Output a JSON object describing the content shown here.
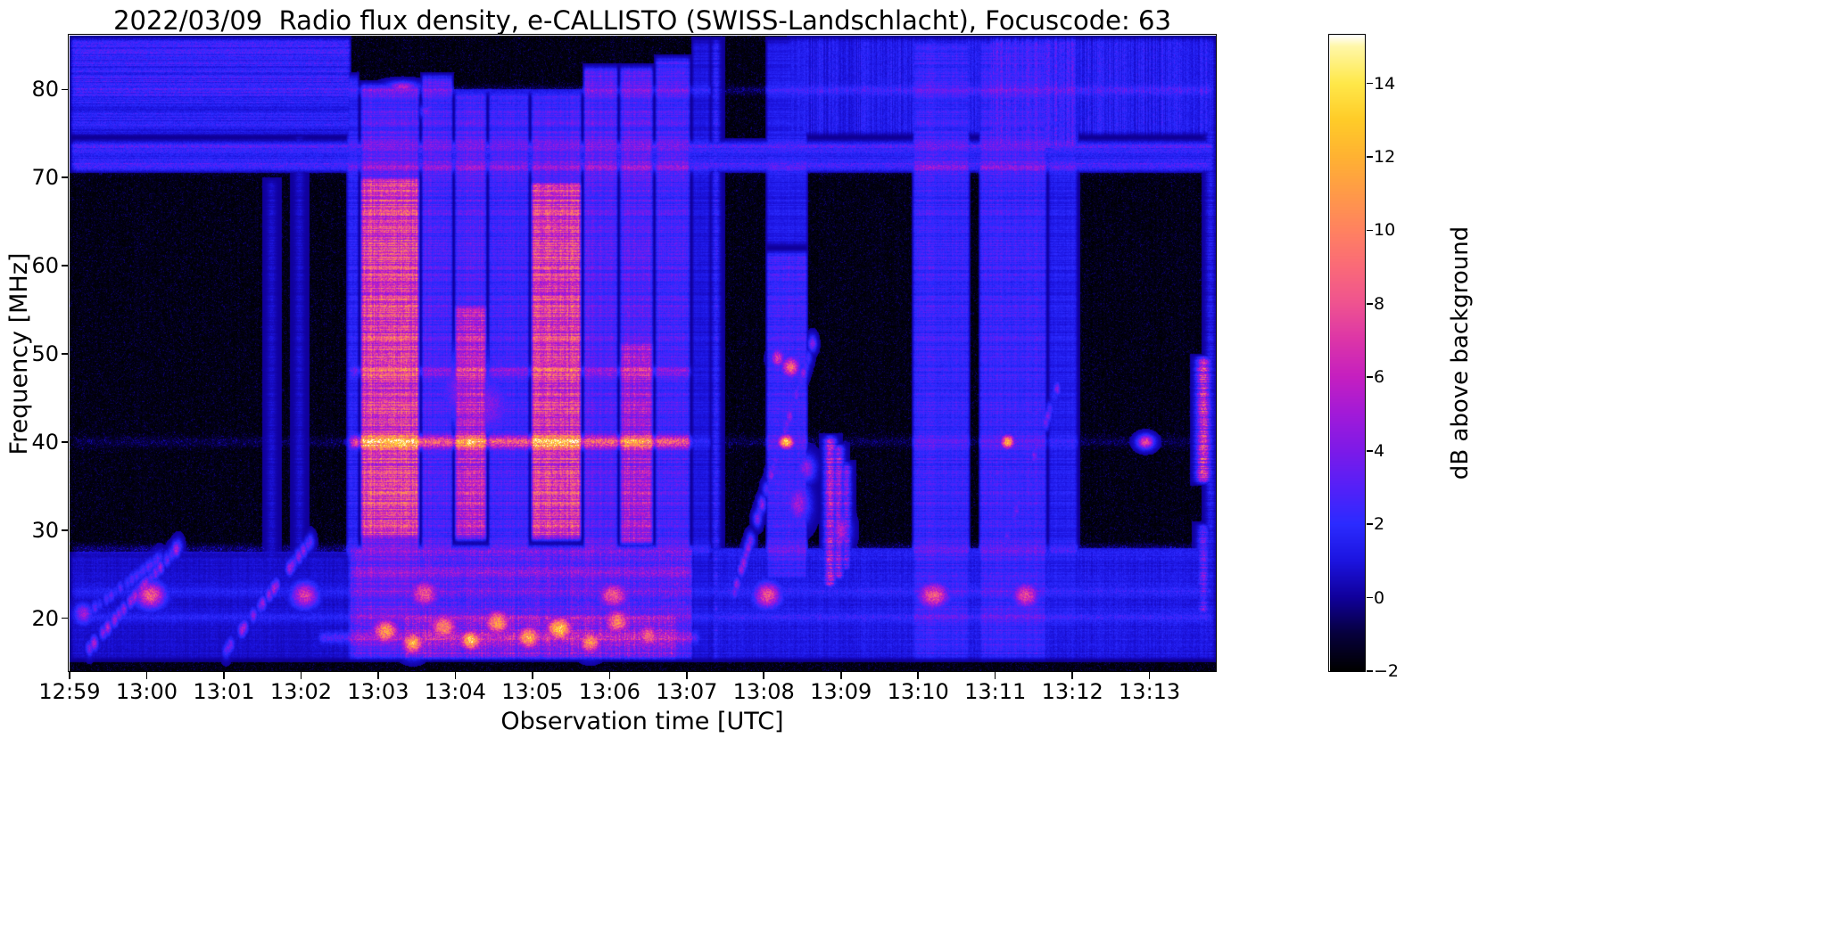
{
  "figure": {
    "background": "#ffffff",
    "text_color": "#000000"
  },
  "chart_data": {
    "type": "heatmap",
    "title": "2022/03/09  Radio flux density, e-CALLISTO (SWISS-Landschlacht), Focuscode: 63",
    "xlabel": "Observation time [UTC]",
    "ylabel": "Frequency [MHz]",
    "units": {
      "t": "minutes after 12:59 UTC",
      "f": "MHz",
      "amp": "dB above background"
    },
    "x_tick_labels": [
      "12:59",
      "13:00",
      "13:01",
      "13:02",
      "13:03",
      "13:04",
      "13:05",
      "13:06",
      "13:07",
      "13:08",
      "13:09",
      "13:10",
      "13:11",
      "13:12",
      "13:13"
    ],
    "x_range_minutes": [
      0,
      14.86
    ],
    "y_tick_values": [
      20,
      30,
      40,
      50,
      60,
      70,
      80
    ],
    "y_range_mhz": [
      14.0,
      86.1
    ],
    "grid": false,
    "colorbar": {
      "label": "dB above background",
      "tick_values": [
        -2,
        0,
        2,
        4,
        6,
        8,
        10,
        12,
        14
      ],
      "range": [
        -2,
        15.3
      ]
    },
    "colormap": {
      "stops": [
        [
          -2,
          "#000000"
        ],
        [
          -1,
          "#06003c"
        ],
        [
          0,
          "#10009b"
        ],
        [
          1,
          "#1c14e0"
        ],
        [
          2,
          "#2b2bff"
        ],
        [
          3,
          "#5520f8"
        ],
        [
          4,
          "#7d1ae8"
        ],
        [
          5,
          "#a21ad8"
        ],
        [
          6,
          "#c51fc0"
        ],
        [
          7,
          "#dc35a8"
        ],
        [
          8,
          "#ef5390"
        ],
        [
          9,
          "#fa6a78"
        ],
        [
          10,
          "#ff8260"
        ],
        [
          11,
          "#ff9a48"
        ],
        [
          12,
          "#ffb232"
        ],
        [
          13,
          "#ffcc28"
        ],
        [
          14,
          "#ffe84a"
        ],
        [
          15,
          "#fff7a8"
        ],
        [
          15.3,
          "#ffffff"
        ]
      ]
    },
    "regions": [
      {
        "t": [
          0,
          3.66
        ],
        "f": [
          74.5,
          86.2
        ],
        "amp": 2.3,
        "tex": "rows"
      },
      {
        "t": [
          0,
          3.66
        ],
        "f": [
          79.5,
          86.2
        ],
        "amp": 2.9,
        "tex": "rows"
      },
      {
        "t": [
          9.3,
          14.86
        ],
        "f": [
          74.5,
          86.2
        ],
        "amp": 2.0,
        "tex": "cols"
      },
      {
        "t": [
          11.9,
          13.1
        ],
        "f": [
          73.0,
          86.2
        ],
        "amp": 3.2,
        "tex": "cols"
      },
      {
        "t": [
          13.15,
          14.86
        ],
        "f": [
          74.5,
          86.2
        ],
        "amp": 2.3,
        "tex": "cols"
      },
      {
        "t": [
          0,
          14.86
        ],
        "f": [
          70.5,
          74.5
        ],
        "amp": 2.0,
        "tex": "rows"
      },
      {
        "t": [
          3.6,
          8.1
        ],
        "f": [
          15.0,
          28.5
        ],
        "amp": 4.2,
        "tex": "mix"
      },
      {
        "t": [
          0,
          14.86
        ],
        "f": [
          15.0,
          27.5
        ],
        "amp": 1.2,
        "tex": "mix"
      },
      {
        "t": [
          8.3,
          14.86
        ],
        "f": [
          15.0,
          28.0
        ],
        "amp": 1.8,
        "tex": "mix"
      },
      {
        "t": [
          4.3,
          7.9
        ],
        "f": [
          15.0,
          21.0
        ],
        "amp": 6.0,
        "tex": "mix"
      }
    ],
    "bands": [
      {
        "t": [
          3.58,
          3.76
        ],
        "f": [
          15,
          82
        ],
        "amp": 2.2
      },
      {
        "t": [
          3.76,
          4.55
        ],
        "f": [
          28.5,
          70.5
        ],
        "amp": 8.6
      },
      {
        "t": [
          3.76,
          4.55
        ],
        "f": [
          67,
          81
        ],
        "amp": 3.4
      },
      {
        "t": [
          3.76,
          4.55
        ],
        "f": [
          15,
          30
        ],
        "amp": 4.0
      },
      {
        "t": [
          4.55,
          4.98
        ],
        "f": [
          16,
          82
        ],
        "amp": 3.2
      },
      {
        "t": [
          4.98,
          5.42
        ],
        "f": [
          28.5,
          56
        ],
        "amp": 7.0
      },
      {
        "t": [
          4.98,
          5.42
        ],
        "f": [
          54,
          80
        ],
        "amp": 3.4
      },
      {
        "t": [
          5.42,
          5.97
        ],
        "f": [
          16,
          80
        ],
        "amp": 3.0
      },
      {
        "t": [
          5.97,
          6.65
        ],
        "f": [
          28.5,
          70
        ],
        "amp": 8.4
      },
      {
        "t": [
          5.97,
          6.65
        ],
        "f": [
          67,
          80
        ],
        "amp": 3.2
      },
      {
        "t": [
          6.65,
          7.12
        ],
        "f": [
          20,
          83
        ],
        "amp": 3.5
      },
      {
        "t": [
          7.12,
          7.58
        ],
        "f": [
          28,
          52
        ],
        "amp": 6.2
      },
      {
        "t": [
          7.12,
          7.58
        ],
        "f": [
          50,
          83
        ],
        "amp": 3.6
      },
      {
        "t": [
          7.58,
          8.06
        ],
        "f": [
          18,
          84
        ],
        "amp": 3.1
      },
      {
        "t": [
          8.06,
          8.32
        ],
        "f": [
          15,
          86
        ],
        "amp": 1.3
      },
      {
        "t": [
          9.02,
          9.58
        ],
        "f": [
          24,
          62
        ],
        "amp": 2.9
      },
      {
        "t": [
          9.02,
          9.58
        ],
        "f": [
          62,
          86
        ],
        "amp": 1.6
      },
      {
        "t": [
          10.92,
          11.68
        ],
        "f": [
          15,
          86
        ],
        "amp": 2.7
      },
      {
        "t": [
          11.78,
          12.68
        ],
        "f": [
          15,
          86
        ],
        "amp": 2.8
      },
      {
        "t": [
          12.68,
          13.08
        ],
        "f": [
          18,
          86
        ],
        "amp": 1.7
      }
    ],
    "hlines": [
      {
        "f": 40.0,
        "df": 0.45,
        "t": [
          3.6,
          8.1
        ],
        "amp": 5.0
      },
      {
        "f": 40.0,
        "df": 0.4,
        "t": [
          0,
          14.86
        ],
        "amp": 0.8
      },
      {
        "f": 48.0,
        "df": 0.4,
        "t": [
          3.6,
          8.1
        ],
        "amp": 1.8
      },
      {
        "f": 71.3,
        "df": 0.5,
        "t": [
          0,
          14.86
        ],
        "amp": 1.6
      },
      {
        "f": 73.6,
        "df": 0.4,
        "t": [
          0,
          14.86
        ],
        "amp": 1.2
      },
      {
        "f": 79.9,
        "df": 0.35,
        "t": [
          0,
          14.86
        ],
        "amp": 1.1
      },
      {
        "f": 27.8,
        "df": 0.4,
        "t": [
          0,
          14.86
        ],
        "amp": 1.3
      },
      {
        "f": 23.0,
        "df": 0.5,
        "t": [
          0,
          14.86
        ],
        "amp": 0.8
      },
      {
        "f": 20.1,
        "df": 0.4,
        "t": [
          0,
          14.86
        ],
        "amp": 0.9
      },
      {
        "f": 17.8,
        "df": 0.4,
        "t": [
          3.2,
          8.2
        ],
        "amp": 2.2
      },
      {
        "f": 25.3,
        "df": 0.35,
        "t": [
          3.6,
          8.1
        ],
        "amp": 1.5
      }
    ],
    "vlines": [
      {
        "t": 8.38,
        "w": 0.035,
        "f": [
          15,
          86
        ],
        "amp": 2.3
      },
      {
        "t": 13.0,
        "w": 0.03,
        "f": [
          15,
          86
        ],
        "amp": 1.8
      },
      {
        "t": 9.86,
        "w": 0.05,
        "f": [
          23,
          41
        ],
        "amp": 6.5
      },
      {
        "t": 9.97,
        "w": 0.045,
        "f": [
          24,
          40
        ],
        "amp": 5.5
      },
      {
        "t": 10.07,
        "w": 0.04,
        "f": [
          25,
          38
        ],
        "amp": 4.5
      },
      {
        "t": 14.7,
        "w": 0.06,
        "f": [
          35,
          50
        ],
        "amp": 8.0
      },
      {
        "t": 14.7,
        "w": 0.05,
        "f": [
          20,
          31
        ],
        "amp": 4.0
      },
      {
        "t": 14.79,
        "w": 0.04,
        "f": [
          15,
          86
        ],
        "amp": 1.6
      },
      {
        "t": 2.62,
        "w": 0.04,
        "f": [
          15,
          70
        ],
        "amp": 0.9
      },
      {
        "t": 2.98,
        "w": 0.04,
        "f": [
          15,
          75
        ],
        "amp": 0.9
      }
    ],
    "sweeps": [
      {
        "a": [
          0.2,
          16
        ],
        "b": [
          1.5,
          29
        ],
        "amp": 5.0
      },
      {
        "a": [
          2.0,
          16
        ],
        "b": [
          3.15,
          29
        ],
        "amp": 4.5
      },
      {
        "a": [
          8.62,
          23
        ],
        "b": [
          9.66,
          52
        ],
        "amp": 4.2
      },
      {
        "a": [
          11.95,
          24
        ],
        "b": [
          12.8,
          46
        ],
        "amp": 3.4
      },
      {
        "a": [
          0.3,
          21
        ],
        "b": [
          1.2,
          27
        ],
        "amp": 3.0
      }
    ],
    "blobs": [
      {
        "t": 1.05,
        "f": 22.6,
        "rt": 0.13,
        "rf": 1.0,
        "amp": 8.5
      },
      {
        "t": 3.05,
        "f": 22.6,
        "rt": 0.12,
        "rf": 1.0,
        "amp": 7.0
      },
      {
        "t": 4.6,
        "f": 22.8,
        "rt": 0.14,
        "rf": 1.1,
        "amp": 8.0
      },
      {
        "t": 7.05,
        "f": 22.6,
        "rt": 0.14,
        "rf": 1.0,
        "amp": 8.5
      },
      {
        "t": 9.05,
        "f": 22.6,
        "rt": 0.12,
        "rf": 1.0,
        "amp": 8.0
      },
      {
        "t": 11.2,
        "f": 22.6,
        "rt": 0.14,
        "rf": 1.0,
        "amp": 8.5
      },
      {
        "t": 12.4,
        "f": 22.6,
        "rt": 0.12,
        "rf": 1.0,
        "amp": 7.5
      },
      {
        "t": 0.18,
        "f": 20.5,
        "rt": 0.08,
        "rf": 0.8,
        "amp": 5.0
      },
      {
        "t": 4.1,
        "f": 18.5,
        "rt": 0.12,
        "rf": 1.0,
        "amp": 11
      },
      {
        "t": 4.45,
        "f": 17.2,
        "rt": 0.1,
        "rf": 0.9,
        "amp": 12
      },
      {
        "t": 4.85,
        "f": 19.0,
        "rt": 0.13,
        "rf": 1.1,
        "amp": 10
      },
      {
        "t": 5.2,
        "f": 17.5,
        "rt": 0.1,
        "rf": 0.8,
        "amp": 13
      },
      {
        "t": 5.55,
        "f": 19.5,
        "rt": 0.12,
        "rf": 1.0,
        "amp": 11
      },
      {
        "t": 5.95,
        "f": 17.8,
        "rt": 0.11,
        "rf": 0.9,
        "amp": 12
      },
      {
        "t": 6.35,
        "f": 18.8,
        "rt": 0.12,
        "rf": 1.0,
        "amp": 13
      },
      {
        "t": 6.75,
        "f": 17.3,
        "rt": 0.1,
        "rf": 0.9,
        "amp": 11
      },
      {
        "t": 7.1,
        "f": 19.6,
        "rt": 0.12,
        "rf": 1.0,
        "amp": 10
      },
      {
        "t": 7.5,
        "f": 18.0,
        "rt": 0.1,
        "rf": 0.9,
        "amp": 9
      },
      {
        "t": 4.3,
        "f": 40.0,
        "rt": 0.25,
        "rf": 0.5,
        "amp": 14
      },
      {
        "t": 5.2,
        "f": 40.0,
        "rt": 0.1,
        "rf": 0.5,
        "amp": 14.5
      },
      {
        "t": 6.3,
        "f": 40.0,
        "rt": 0.28,
        "rf": 0.5,
        "amp": 14
      },
      {
        "t": 7.3,
        "f": 40.0,
        "rt": 0.12,
        "rf": 0.45,
        "amp": 13
      },
      {
        "t": 9.29,
        "f": 40.0,
        "rt": 0.07,
        "rf": 0.55,
        "amp": 13
      },
      {
        "t": 12.16,
        "f": 40.0,
        "rt": 0.06,
        "rf": 0.55,
        "amp": 12
      },
      {
        "t": 13.95,
        "f": 40.0,
        "rt": 0.07,
        "rf": 0.5,
        "amp": 8
      },
      {
        "t": 9.35,
        "f": 48.5,
        "rt": 0.08,
        "rf": 0.8,
        "amp": 9
      },
      {
        "t": 9.18,
        "f": 49.5,
        "rt": 0.06,
        "rf": 0.7,
        "amp": 7
      },
      {
        "t": 5.15,
        "f": 46.0,
        "rt": 0.25,
        "rf": 3.0,
        "amp": 4.5
      },
      {
        "t": 5.45,
        "f": 44.0,
        "rt": 0.2,
        "rf": 2.5,
        "amp": 4.0
      },
      {
        "t": 9.45,
        "f": 33.0,
        "rt": 0.1,
        "rf": 1.5,
        "amp": 5.0
      },
      {
        "t": 9.55,
        "f": 37.0,
        "rt": 0.08,
        "rf": 1.0,
        "amp": 4.5
      },
      {
        "t": 10.0,
        "f": 30.0,
        "rt": 0.08,
        "rf": 1.2,
        "amp": 5.5
      },
      {
        "t": 4.32,
        "f": 80.3,
        "rt": 0.14,
        "rf": 0.4,
        "amp": 5.5
      },
      {
        "t": 4.62,
        "f": 77.5,
        "rt": 0.05,
        "rf": 0.5,
        "amp": 4.0
      }
    ]
  }
}
